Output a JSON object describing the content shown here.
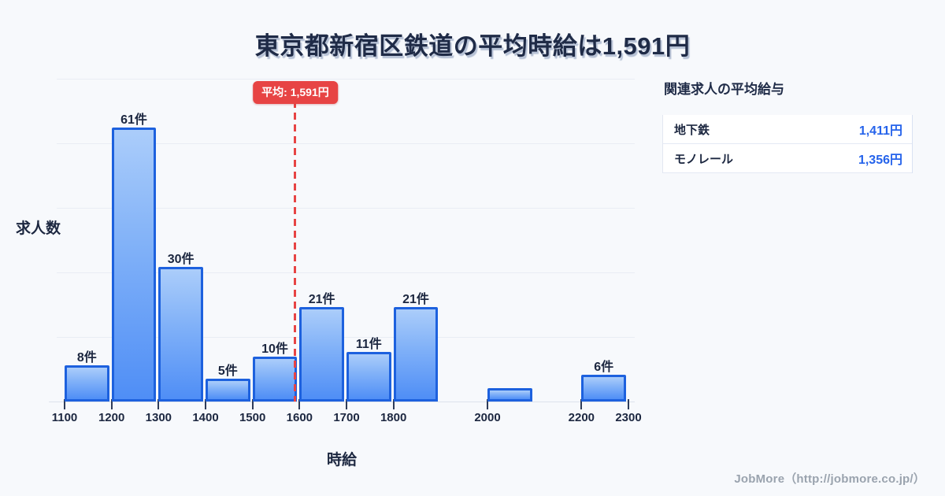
{
  "page": {
    "title": "東京都新宿区鉄道の平均時給は1,591円",
    "footer_credit": "JobMore（http://jobmore.co.jp/）"
  },
  "chart_data": {
    "type": "bar",
    "subtype": "histogram",
    "title": "東京都新宿区鉄道の平均時給は1,591円",
    "xlabel": "時給",
    "ylabel": "求人数",
    "count_unit": "件",
    "x_range": [
      1100,
      2300
    ],
    "ylim": [
      0,
      72
    ],
    "grid": true,
    "x_ticks": [
      1100,
      1200,
      1300,
      1400,
      1500,
      1600,
      1700,
      1800,
      2000,
      2200,
      2300
    ],
    "bins": [
      {
        "start": 1100,
        "end": 1200,
        "count": 8,
        "label": "8件"
      },
      {
        "start": 1200,
        "end": 1300,
        "count": 61,
        "label": "61件"
      },
      {
        "start": 1300,
        "end": 1400,
        "count": 30,
        "label": "30件"
      },
      {
        "start": 1400,
        "end": 1500,
        "count": 5,
        "label": "5件"
      },
      {
        "start": 1500,
        "end": 1600,
        "count": 10,
        "label": "10件"
      },
      {
        "start": 1600,
        "end": 1700,
        "count": 21,
        "label": "21件"
      },
      {
        "start": 1700,
        "end": 1800,
        "count": 11,
        "label": "11件"
      },
      {
        "start": 1800,
        "end": 1900,
        "count": 21,
        "label": "21件"
      },
      {
        "start": 2000,
        "end": 2100,
        "count": 3,
        "label": ""
      },
      {
        "start": 2200,
        "end": 2300,
        "count": 6,
        "label": "6件"
      }
    ],
    "average_line": {
      "value": 1591,
      "label": "平均: 1,591円",
      "color": "#e74444"
    }
  },
  "side_panel": {
    "title": "関連求人の平均給与",
    "rows": [
      {
        "label": "地下鉄",
        "value": "1,411円"
      },
      {
        "label": "モノレール",
        "value": "1,356円"
      }
    ]
  },
  "colors": {
    "background": "#f7f9fc",
    "title_text": "#1f2b47",
    "bar_fill_top": "#abcdfa",
    "bar_fill_bottom": "#4f8ef6",
    "bar_border": "#1d61de",
    "gridline": "#e9edf4",
    "average_red": "#e74444",
    "value_blue": "#2563eb",
    "footer_gray": "#9aa3ae"
  }
}
